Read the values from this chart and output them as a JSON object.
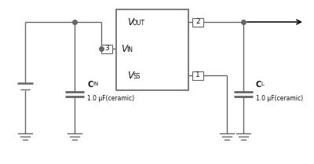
{
  "bg_color": "#ffffff",
  "line_color": "#666666",
  "text_color": "#111111",
  "cap_label_cin": "C",
  "cap_sub_cin": "IN",
  "cap_value_cin": "1.0 μF(ceramic)",
  "cap_label_cl": "C",
  "cap_sub_cl": "L",
  "cap_value_cl": "1.0 μF(ceramic)",
  "vout_label": "V",
  "vout_sub": "OUT",
  "vin_label": "V",
  "vin_sub": "IN",
  "vss_label": "V",
  "vss_sub": "SS"
}
